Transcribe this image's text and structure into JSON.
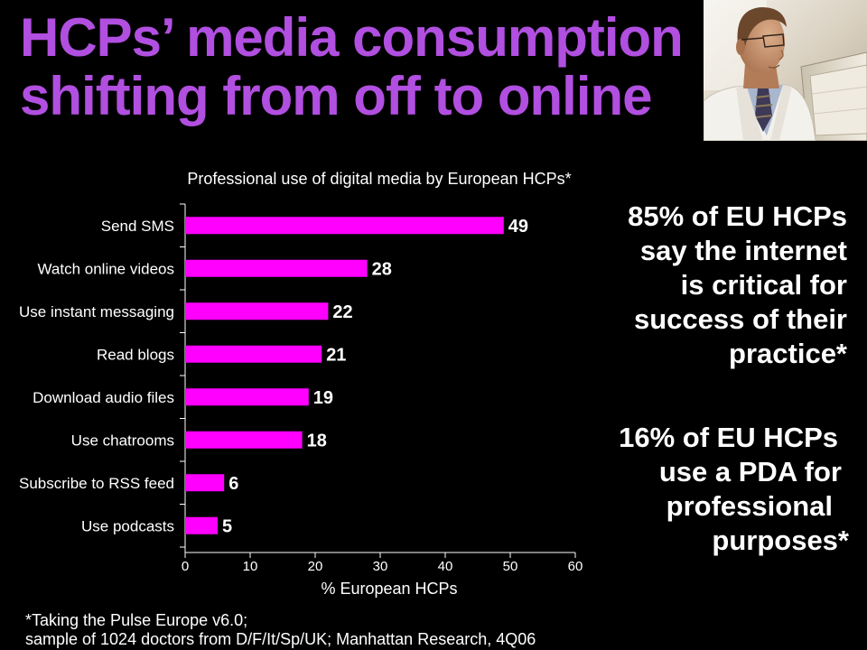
{
  "slide": {
    "title_lines": [
      "HCPs’ media consumption",
      "shifting from off to online"
    ]
  },
  "stats": [
    {
      "lines": [
        "85% of EU HCPs",
        "say the internet",
        "is critical for",
        "success of their",
        "practice*"
      ]
    },
    {
      "lines": [
        "16% of EU HCPs",
        "use a PDA for",
        "professional",
        "purposes*"
      ]
    }
  ],
  "footnote": {
    "lines": [
      "*Taking the Pulse Europe v6.0;",
      "sample of 1024 doctors from D/F/It/Sp/UK; Manhattan Research, 4Q06"
    ]
  },
  "colors": {
    "background": "#000000",
    "title": "#B14FE0",
    "text": "#FFFFFF",
    "bar": "#FF00FF"
  },
  "chart_data": {
    "type": "bar",
    "orientation": "horizontal",
    "title": "Professional use of digital media by European HCPs*",
    "xlabel": "% European HCPs",
    "ylabel": "",
    "categories": [
      "Send SMS",
      "Watch online videos",
      "Use instant messaging",
      "Read blogs",
      "Download audio files",
      "Use chatrooms",
      "Subscribe to RSS feed",
      "Use podcasts"
    ],
    "values": [
      49,
      28,
      22,
      21,
      19,
      18,
      6,
      5
    ],
    "xlim": [
      0,
      60
    ],
    "xticks": [
      0,
      10,
      20,
      30,
      40,
      50,
      60
    ],
    "bar_color": "#FF00FF",
    "data_labels": true,
    "grid": false
  }
}
